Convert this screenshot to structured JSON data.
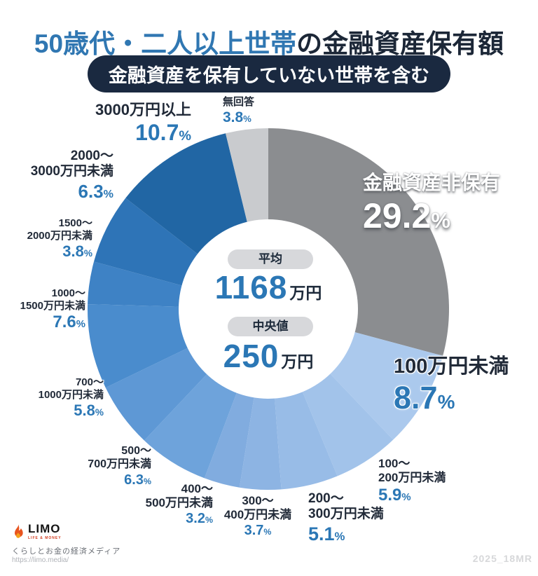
{
  "header": {
    "title_highlight": "50歳代・二人以上世帯",
    "title_rest": "の金融資産保有額",
    "subtitle": "金融資産を保有していない世帯を含む"
  },
  "center": {
    "avg_label": "平均",
    "avg_value": "1168",
    "avg_unit": "万円",
    "median_label": "中央値",
    "median_value": "250",
    "median_unit": "万円"
  },
  "chart_data": {
    "type": "pie",
    "donut": true,
    "title": "50歳代・二人以上世帯の金融資産保有額",
    "subtitle": "金融資産を保有していない世帯を含む",
    "start_angle": "top",
    "direction": "clockwise",
    "percent_sign": "%",
    "average": "1168万円",
    "median": "250万円",
    "segments": [
      {
        "label": "金融資産非保有",
        "display": "金融資産非保有",
        "value": 29.2,
        "color": "#8b8d90"
      },
      {
        "label": "100万円未満",
        "display": "100万円未満",
        "value": 8.7,
        "color": "#abc9ed"
      },
      {
        "label": "100〜200万円未満",
        "display": "100〜\n200万円未満",
        "value": 5.9,
        "color": "#a2c3ea"
      },
      {
        "label": "200〜300万円未満",
        "display": "200〜\n300万円未満",
        "value": 5.1,
        "color": "#98bce7"
      },
      {
        "label": "300〜400万円未満",
        "display": "300〜\n400万円未満",
        "value": 3.7,
        "color": "#8db4e3"
      },
      {
        "label": "400〜500万円未満",
        "display": "400〜\n500万円未満",
        "value": 3.2,
        "color": "#81acdf"
      },
      {
        "label": "500〜700万円未満",
        "display": "500〜\n700万円未満",
        "value": 6.3,
        "color": "#6ea3db"
      },
      {
        "label": "700〜1000万円未満",
        "display": "700〜\n1000万円未満",
        "value": 5.8,
        "color": "#5e98d5"
      },
      {
        "label": "1000〜1500万円未満",
        "display": "1000〜\n1500万円未満",
        "value": 7.6,
        "color": "#4a8ccd"
      },
      {
        "label": "1500〜2000万円未満",
        "display": "1500〜\n2000万円未満",
        "value": 3.8,
        "color": "#3e82c5"
      },
      {
        "label": "2000〜3000万円未満",
        "display": "2000〜\n3000万円未満",
        "value": 6.3,
        "color": "#2e74b7"
      },
      {
        "label": "3000万円以上",
        "display": "3000万円以上",
        "value": 10.7,
        "color": "#2166a4"
      },
      {
        "label": "無回答",
        "display": "無回答",
        "value": 3.8,
        "color": "#c9cbce"
      }
    ]
  },
  "footer": {
    "logo_text": "LIMO",
    "logo_tagline": "LIFE & MONEY",
    "site_description": "くらしとお金の経済メディア",
    "site_url": "https://limo.media/",
    "watermark": "2025_18MR"
  },
  "colors": {
    "title_highlight": "#3077b2",
    "title_rest": "#1c2737",
    "subtitle_bg": "#1a2940",
    "percent_text": "#2b77b5",
    "label_text": "#212a38",
    "center_pill_bg": "#d7d8db"
  }
}
